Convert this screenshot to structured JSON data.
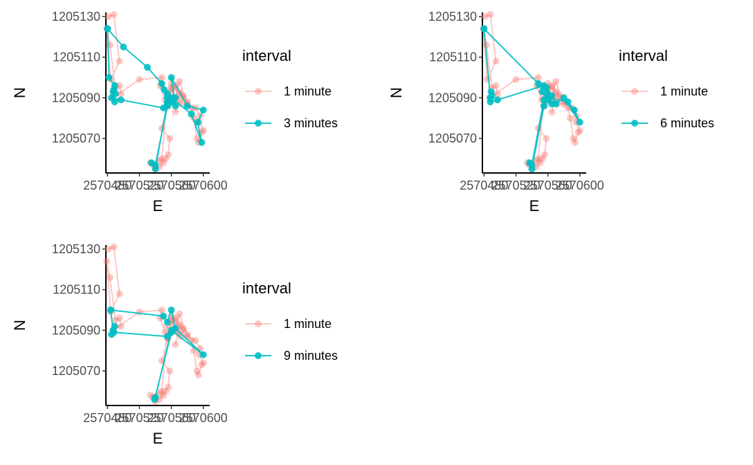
{
  "chart_data": [
    {
      "type": "scatter",
      "xlabel": "E",
      "ylabel": "N",
      "xlim": [
        2570478,
        2570608
      ],
      "ylim": [
        1205053,
        1205132
      ],
      "x_ticks": [
        2570480,
        2570520,
        2570560,
        2570600
      ],
      "x_tick_labels": [
        "2570480",
        "2570520",
        "2570560",
        "2570600"
      ],
      "y_ticks": [
        1205070,
        1205090,
        1205110,
        1205130
      ],
      "legend": {
        "title": "interval",
        "position": "right"
      },
      "series": [
        {
          "name": "1 minute",
          "color": "#F8766D",
          "alpha": 0.4,
          "x": [
            2570481,
            2570488,
            2570495,
            2570484,
            2570479,
            2570483,
            2570490,
            2570495,
            2570497,
            2570487,
            2570520,
            2570548,
            2570546,
            2570552,
            2570556,
            2570548,
            2570558,
            2570556,
            2570553,
            2570550,
            2570545,
            2570540,
            2570537,
            2570534,
            2570546,
            2570548,
            2570555,
            2570560,
            2570565,
            2570570,
            2570580,
            2570590,
            2570596,
            2570595,
            2570600,
            2570598,
            2570594,
            2570592,
            2570588,
            2570585,
            2570580,
            2570575,
            2570570,
            2570565,
            2570560,
            2570562,
            2570558,
            2570555,
            2570560,
            2570565,
            2570568,
            2570572,
            2570575,
            2570570,
            2570565
          ],
          "y": [
            1205130,
            1205131,
            1205108,
            1205099,
            1205124,
            1205116,
            1205095,
            1205096,
            1205092,
            1205090,
            1205099,
            1205100,
            1205096,
            1205089,
            1205086,
            1205075,
            1205070,
            1205062,
            1205060,
            1205058,
            1205056,
            1205055,
            1205057,
            1205058,
            1205059,
            1205060,
            1205092,
            1205095,
            1205090,
            1205098,
            1205087,
            1205085,
            1205081,
            1205078,
            1205074,
            1205073,
            1205068,
            1205070,
            1205080,
            1205085,
            1205088,
            1205091,
            1205093,
            1205095,
            1205097,
            1205090,
            1205088,
            1205086,
            1205094,
            1205096,
            1205089,
            1205087,
            1205090,
            1205092,
            1205083
          ]
        },
        {
          "name": "3 minutes",
          "color": "#00BFC4",
          "alpha": 0.9,
          "x": [
            2570480,
            2570500,
            2570530,
            2570548,
            2570551,
            2570555,
            2570560,
            2570555,
            2570565,
            2570560,
            2570580,
            2570600,
            2570593,
            2570598,
            2570585,
            2570560,
            2570555,
            2570540,
            2570535,
            2570540,
            2570555,
            2570565,
            2570560,
            2570555,
            2570550,
            2570497,
            2570485,
            2570487,
            2570489,
            2570488,
            2570490,
            2570489,
            2570482,
            2570480
          ],
          "y": [
            1205124,
            1205115,
            1205105,
            1205097,
            1205094,
            1205090,
            1205088,
            1205092,
            1205086,
            1205100,
            1205086,
            1205084,
            1205078,
            1205068,
            1205082,
            1205090,
            1205088,
            1205055,
            1205058,
            1205057,
            1205086,
            1205090,
            1205089,
            1205087,
            1205085,
            1205089,
            1205090,
            1205093,
            1205088,
            1205094,
            1205092,
            1205096,
            1205100,
            1205124
          ]
        }
      ]
    },
    {
      "type": "scatter",
      "xlabel": "E",
      "ylabel": "N",
      "xlim": [
        2570478,
        2570608
      ],
      "ylim": [
        1205053,
        1205132
      ],
      "x_ticks": [
        2570480,
        2570520,
        2570560,
        2570600
      ],
      "x_tick_labels": [
        "2570480",
        "2570520",
        "2570560",
        "2570600"
      ],
      "y_ticks": [
        1205070,
        1205090,
        1205110,
        1205130
      ],
      "legend": {
        "title": "interval",
        "position": "right"
      },
      "series": [
        {
          "name": "1 minute",
          "color": "#F8766D",
          "alpha": 0.4,
          "x": [
            2570481,
            2570488,
            2570495,
            2570484,
            2570479,
            2570483,
            2570490,
            2570495,
            2570497,
            2570487,
            2570520,
            2570548,
            2570546,
            2570552,
            2570556,
            2570548,
            2570558,
            2570556,
            2570553,
            2570550,
            2570545,
            2570540,
            2570537,
            2570534,
            2570546,
            2570548,
            2570555,
            2570560,
            2570565,
            2570570,
            2570580,
            2570590,
            2570596,
            2570595,
            2570600,
            2570598,
            2570594,
            2570592,
            2570588,
            2570585,
            2570580,
            2570575,
            2570570,
            2570565,
            2570560,
            2570562,
            2570558,
            2570555,
            2570560,
            2570565,
            2570568,
            2570572,
            2570575,
            2570570,
            2570565
          ],
          "y": [
            1205130,
            1205131,
            1205108,
            1205099,
            1205124,
            1205116,
            1205095,
            1205096,
            1205092,
            1205090,
            1205099,
            1205100,
            1205096,
            1205089,
            1205086,
            1205075,
            1205070,
            1205062,
            1205060,
            1205058,
            1205056,
            1205055,
            1205057,
            1205058,
            1205059,
            1205060,
            1205092,
            1205095,
            1205090,
            1205098,
            1205087,
            1205085,
            1205081,
            1205078,
            1205074,
            1205073,
            1205068,
            1205070,
            1205080,
            1205085,
            1205088,
            1205091,
            1205093,
            1205095,
            1205097,
            1205090,
            1205088,
            1205086,
            1205094,
            1205096,
            1205089,
            1205087,
            1205090,
            1205092,
            1205083
          ]
        },
        {
          "name": "6 minutes",
          "color": "#00BFC4",
          "alpha": 0.9,
          "x": [
            2570480,
            2570548,
            2570553,
            2570560,
            2570558,
            2570565,
            2570570,
            2570580,
            2570600,
            2570593,
            2570585,
            2570560,
            2570555,
            2570540,
            2570537,
            2570540,
            2570555,
            2570565,
            2570560,
            2570555,
            2570497,
            2570488,
            2570489,
            2570490,
            2570488,
            2570480
          ],
          "y": [
            1205124,
            1205097,
            1205093,
            1205089,
            1205095,
            1205091,
            1205087,
            1205090,
            1205078,
            1205084,
            1205088,
            1205090,
            1205086,
            1205055,
            1205058,
            1205057,
            1205089,
            1205087,
            1205092,
            1205096,
            1205089,
            1205088,
            1205093,
            1205091,
            1205090,
            1205124
          ]
        }
      ]
    },
    {
      "type": "scatter",
      "xlabel": "E",
      "ylabel": "N",
      "xlim": [
        2570478,
        2570608
      ],
      "ylim": [
        1205053,
        1205132
      ],
      "x_ticks": [
        2570480,
        2570520,
        2570560,
        2570600
      ],
      "x_tick_labels": [
        "2570480",
        "2570520",
        "2570560",
        "2570600"
      ],
      "y_ticks": [
        1205070,
        1205090,
        1205110,
        1205130
      ],
      "legend": {
        "title": "interval",
        "position": "right"
      },
      "series": [
        {
          "name": "1 minute",
          "color": "#F8766D",
          "alpha": 0.4,
          "x": [
            2570481,
            2570488,
            2570495,
            2570484,
            2570479,
            2570483,
            2570490,
            2570495,
            2570497,
            2570487,
            2570520,
            2570548,
            2570546,
            2570552,
            2570556,
            2570548,
            2570558,
            2570556,
            2570553,
            2570550,
            2570545,
            2570540,
            2570537,
            2570534,
            2570546,
            2570548,
            2570555,
            2570560,
            2570565,
            2570570,
            2570580,
            2570590,
            2570596,
            2570595,
            2570600,
            2570598,
            2570594,
            2570592,
            2570588,
            2570585,
            2570580,
            2570575,
            2570570,
            2570565,
            2570560,
            2570562,
            2570558,
            2570555,
            2570560,
            2570565,
            2570568,
            2570572,
            2570575,
            2570570,
            2570565
          ],
          "y": [
            1205130,
            1205131,
            1205108,
            1205099,
            1205124,
            1205116,
            1205095,
            1205096,
            1205092,
            1205090,
            1205099,
            1205100,
            1205096,
            1205089,
            1205086,
            1205075,
            1205070,
            1205062,
            1205060,
            1205058,
            1205056,
            1205055,
            1205057,
            1205058,
            1205059,
            1205060,
            1205092,
            1205095,
            1205090,
            1205098,
            1205087,
            1205085,
            1205081,
            1205078,
            1205074,
            1205073,
            1205068,
            1205070,
            1205080,
            1205085,
            1205088,
            1205091,
            1205093,
            1205095,
            1205097,
            1205090,
            1205088,
            1205086,
            1205094,
            1205096,
            1205089,
            1205087,
            1205090,
            1205092,
            1205083
          ]
        },
        {
          "name": "9 minutes",
          "color": "#00BFC4",
          "alpha": 0.9,
          "x": [
            2570484,
            2570550,
            2570555,
            2570560,
            2570565,
            2570600,
            2570560,
            2570540,
            2570539,
            2570560,
            2570555,
            2570488,
            2570485,
            2570489,
            2570487,
            2570484
          ],
          "y": [
            1205100,
            1205097,
            1205094,
            1205100,
            1205091,
            1205078,
            1205090,
            1205057,
            1205056,
            1205089,
            1205087,
            1205089,
            1205088,
            1205092,
            1205090,
            1205100
          ]
        }
      ]
    }
  ]
}
